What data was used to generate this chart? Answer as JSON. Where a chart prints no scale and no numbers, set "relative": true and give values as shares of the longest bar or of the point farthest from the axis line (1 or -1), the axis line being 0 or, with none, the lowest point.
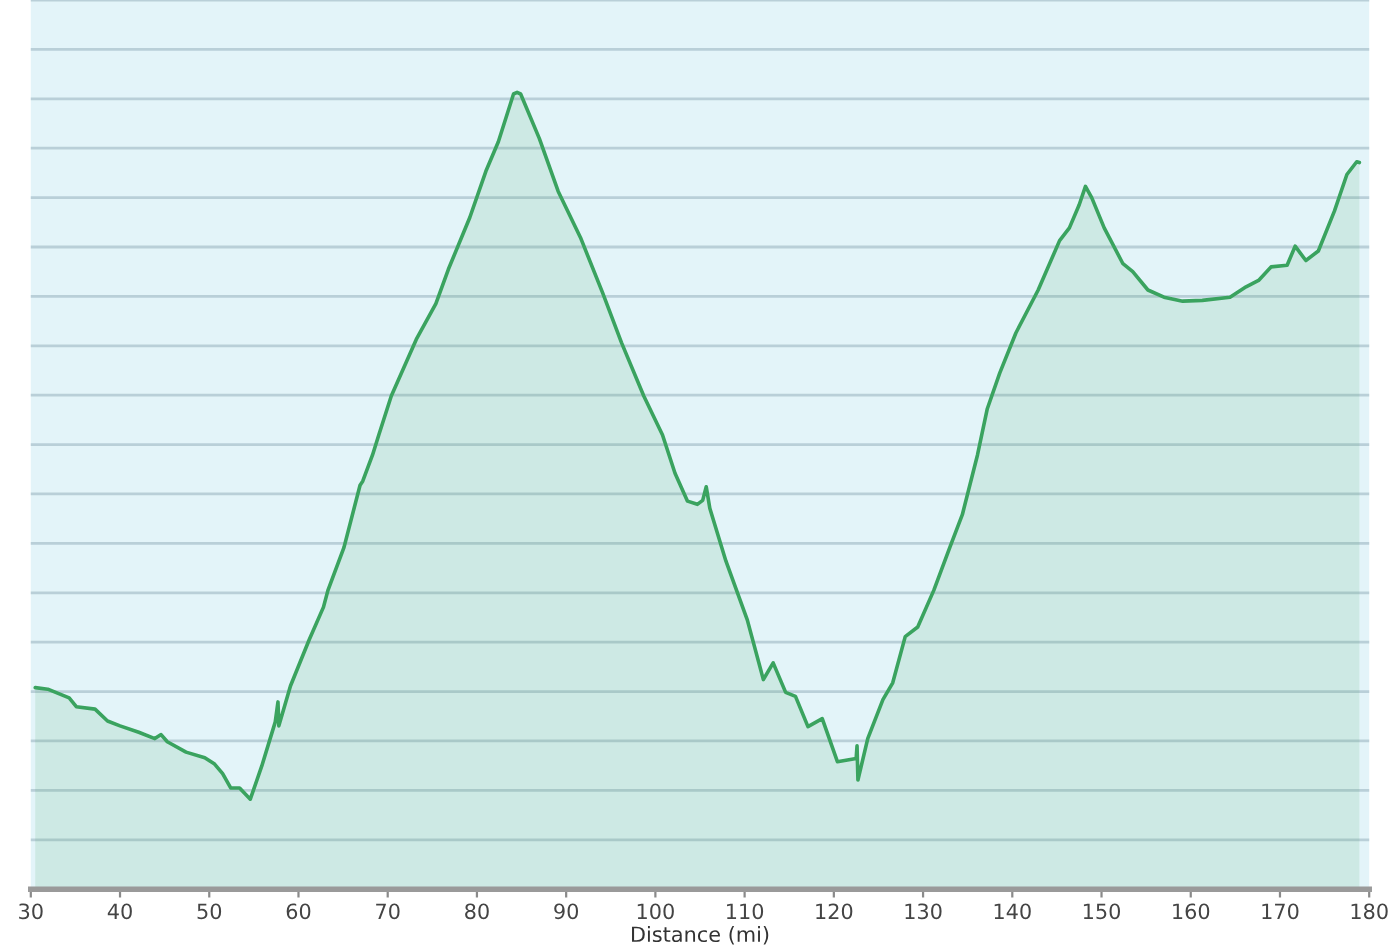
{
  "chart_data": {
    "type": "area",
    "xlabel": "Distance (mi)",
    "relative": true,
    "color": "#3aa35f",
    "grid": "y",
    "xlim": [
      30,
      180
    ],
    "xticks": [
      30,
      40,
      50,
      60,
      70,
      80,
      90,
      100,
      110,
      120,
      130,
      140,
      150,
      160,
      170,
      180
    ],
    "x": [
      30.5,
      31.9,
      34.3,
      35.1,
      37.2,
      38.6,
      40.0,
      42.1,
      43.9,
      44.6,
      45.3,
      47.4,
      49.5,
      50.6,
      51.5,
      52.4,
      53.4,
      54.6,
      55.9,
      57.4,
      57.7,
      57.8,
      59.1,
      61.2,
      62.8,
      63.3,
      65.1,
      66.9,
      67.2,
      68.3,
      69.0,
      70.4,
      73.2,
      75.4,
      76.8,
      79.2,
      81.0,
      82.4,
      84.1,
      84.5,
      84.9,
      87.0,
      89.1,
      91.6,
      94.1,
      96.2,
      98.7,
      100.8,
      102.2,
      102.6,
      103.6,
      104.7,
      105.3,
      105.7,
      106.1,
      107.9,
      110.3,
      112.1,
      113.2,
      114.6,
      115.7,
      117.1,
      118.7,
      120.4,
      122.5,
      122.6,
      122.7,
      123.8,
      125.5,
      126.6,
      128.0,
      129.4,
      131.2,
      133.0,
      134.4,
      136.1,
      137.2,
      138.6,
      140.4,
      142.9,
      145.3,
      146.4,
      147.5,
      148.2,
      148.9,
      150.3,
      152.4,
      153.5,
      155.2,
      157.0,
      159.1,
      161.3,
      164.4,
      166.2,
      167.6,
      169.0,
      170.8,
      171.7,
      172.9,
      174.3,
      176.1,
      177.5,
      178.6,
      178.9
    ],
    "values": [
      0.253,
      0.251,
      0.24,
      0.229,
      0.226,
      0.211,
      0.205,
      0.197,
      0.189,
      0.194,
      0.185,
      0.172,
      0.165,
      0.157,
      0.145,
      0.127,
      0.127,
      0.113,
      0.155,
      0.21,
      0.235,
      0.205,
      0.255,
      0.313,
      0.354,
      0.375,
      0.429,
      0.507,
      0.512,
      0.545,
      0.57,
      0.619,
      0.69,
      0.735,
      0.778,
      0.843,
      0.901,
      0.938,
      0.998,
      1.0,
      0.998,
      0.942,
      0.876,
      0.818,
      0.748,
      0.686,
      0.619,
      0.57,
      0.522,
      0.512,
      0.487,
      0.483,
      0.488,
      0.505,
      0.478,
      0.412,
      0.338,
      0.263,
      0.284,
      0.247,
      0.242,
      0.204,
      0.214,
      0.16,
      0.164,
      0.18,
      0.137,
      0.189,
      0.238,
      0.259,
      0.317,
      0.329,
      0.375,
      0.429,
      0.47,
      0.545,
      0.603,
      0.648,
      0.698,
      0.752,
      0.814,
      0.83,
      0.859,
      0.882,
      0.868,
      0.83,
      0.785,
      0.775,
      0.752,
      0.743,
      0.738,
      0.739,
      0.743,
      0.756,
      0.764,
      0.781,
      0.783,
      0.807,
      0.789,
      0.801,
      0.851,
      0.897,
      0.913,
      0.912
    ]
  }
}
